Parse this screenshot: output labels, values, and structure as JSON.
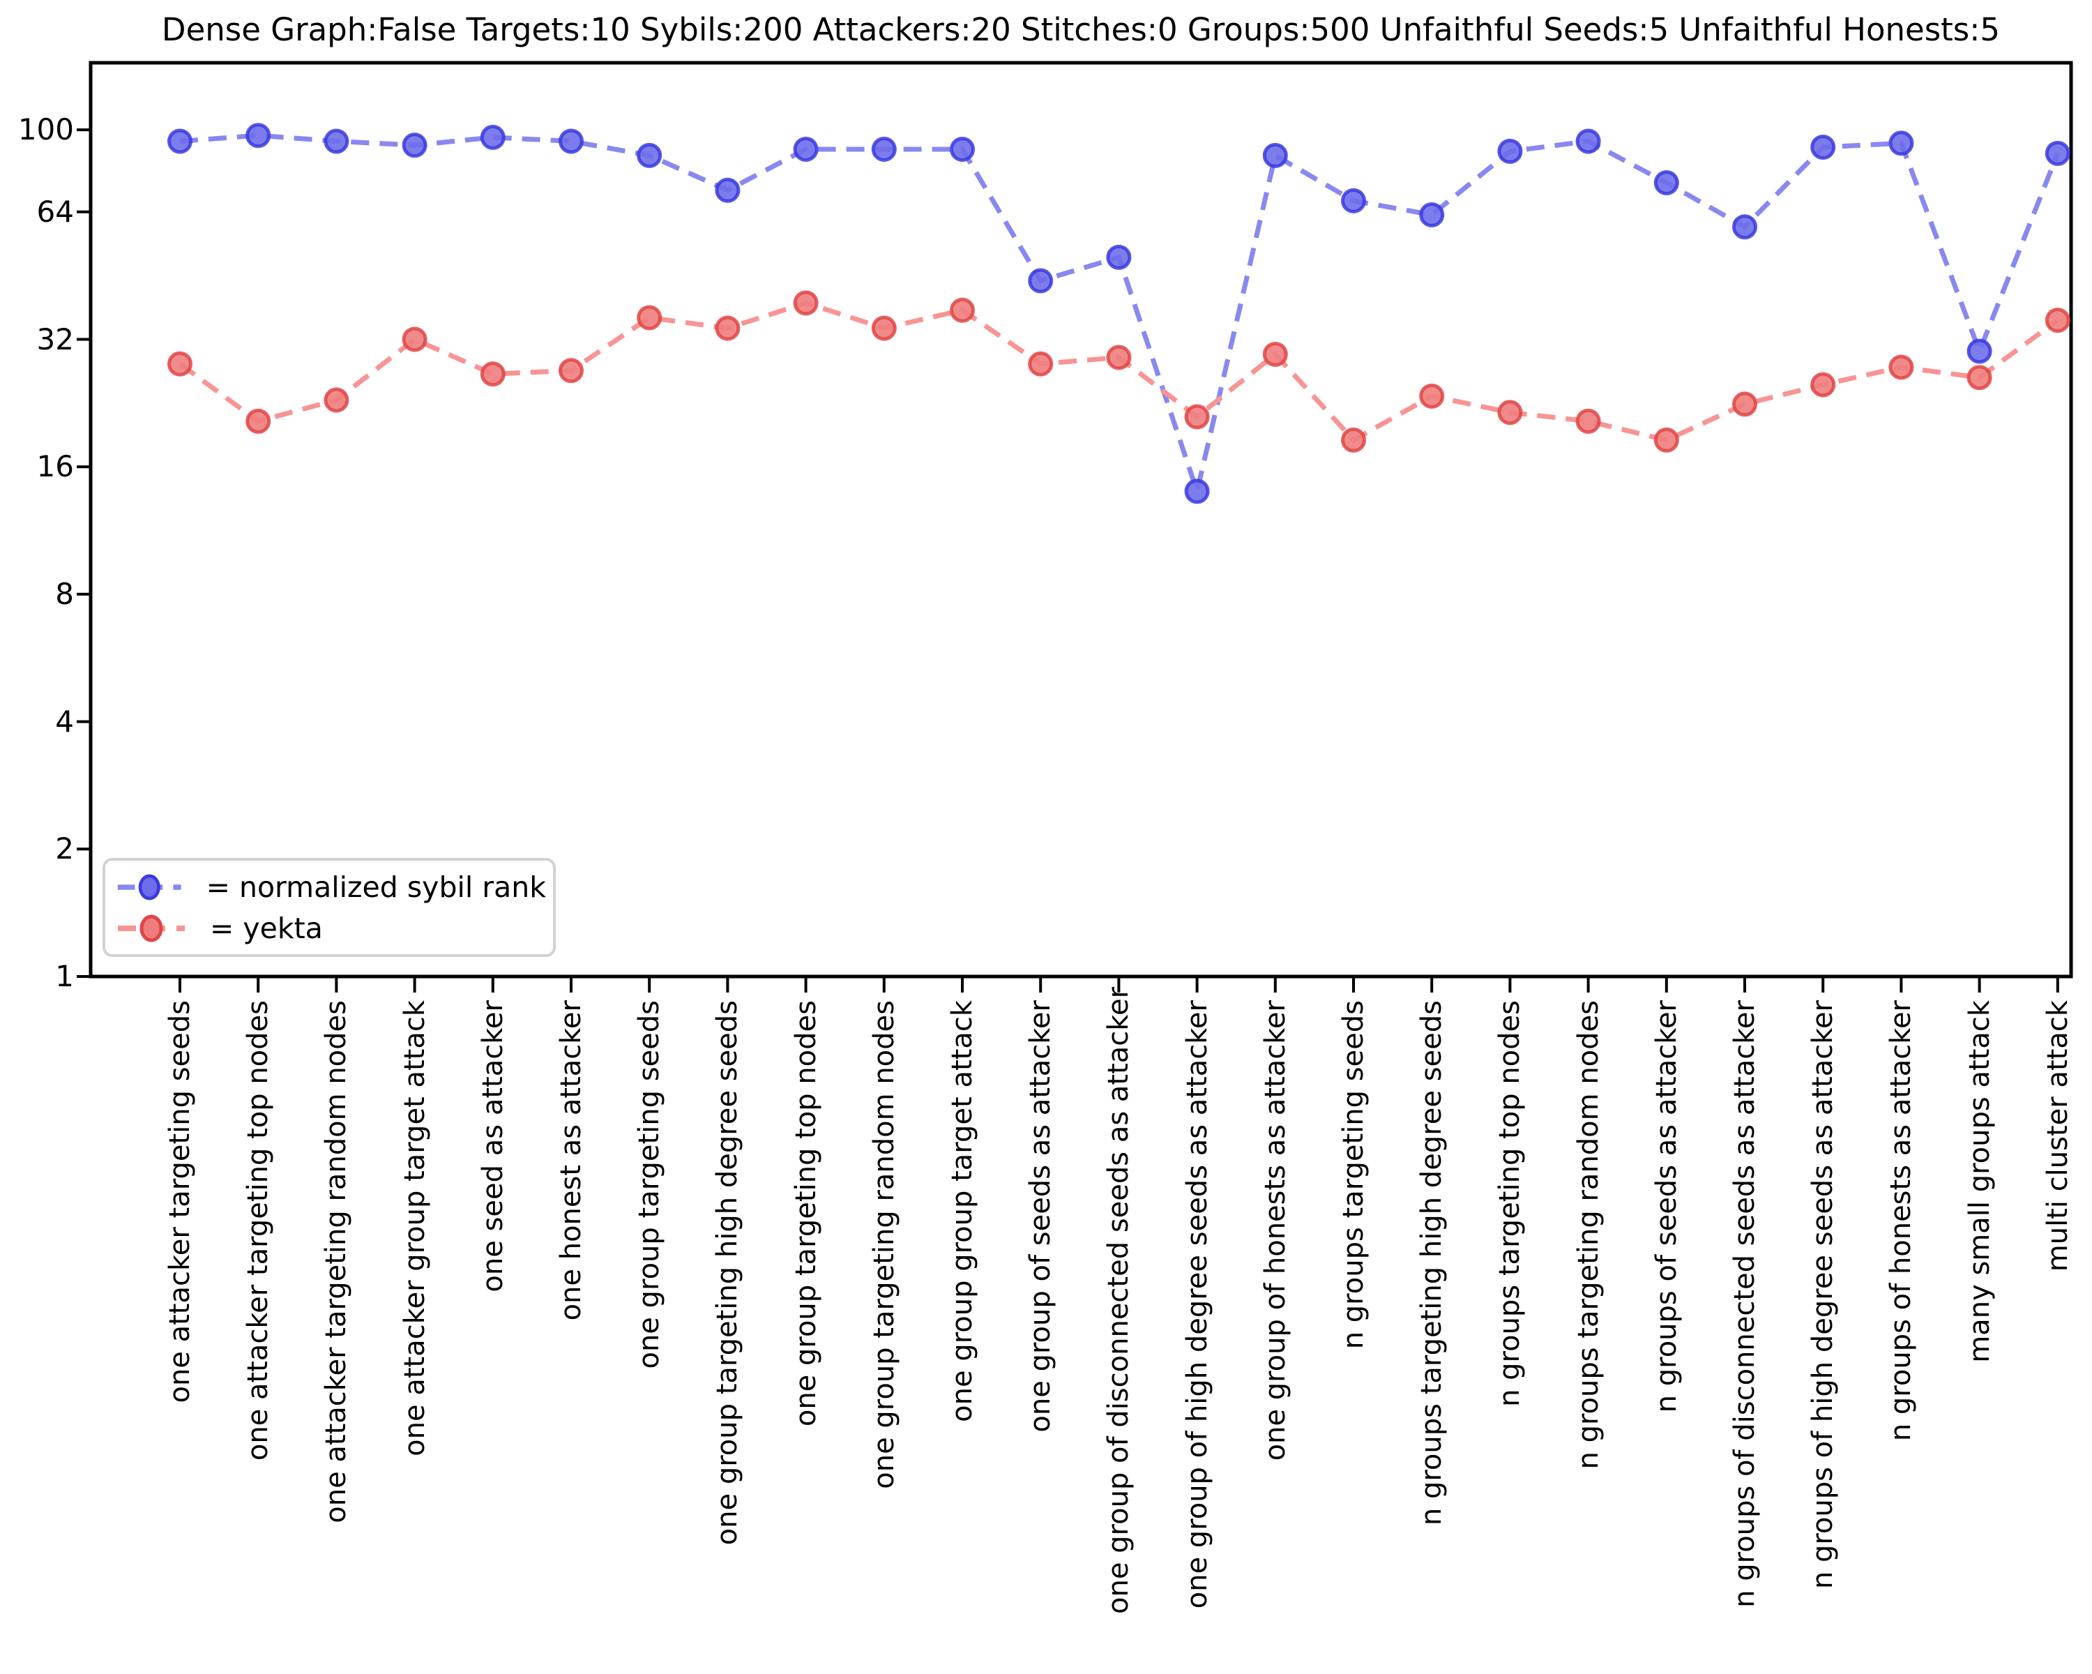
{
  "title": "Dense Graph:False Targets:10 Sybils:200 Attackers:20 Stitches:0 Groups:500 Unfaithful Seeds:5 Unfaithful Honests:5",
  "legend": {
    "items": [
      {
        "label": "= normalized sybil rank",
        "series": "normalized sybil rank"
      },
      {
        "label": "= yekta",
        "series": "yekta"
      }
    ]
  },
  "colors": {
    "sybil_rank_line": "#8888f0",
    "sybil_rank_fill": "#6e6eeb",
    "sybil_rank_edge": "#3a3ae0",
    "yekta_line": "#f89494",
    "yekta_fill": "#ef7d7d",
    "yekta_edge": "#e24444",
    "axis": "#000000",
    "legend_border": "#d2d2d2",
    "background": "#ffffff"
  },
  "chart_data": {
    "type": "line",
    "yscale": "log2",
    "grid": false,
    "legend_position": "lower left",
    "ylim": [
      1,
      141
    ],
    "yticks": [
      100,
      64,
      32,
      16,
      8,
      4,
      2,
      1
    ],
    "categories": [
      "one attacker targeting seeds",
      "one attacker targeting top nodes",
      "one attacker targeting random nodes",
      "one attacker group target attack",
      "one seed as attacker",
      "one honest as attacker",
      "one group targeting seeds",
      "one group targeting high degree seeds",
      "one group targeting top nodes",
      "one group targeting random nodes",
      "one group group target attack",
      "one group of seeds as attacker",
      "one group of disconnected seeds as attacker",
      "one group of high degree seeds as attacker",
      "one group of honests as attacker",
      "n groups targeting seeds",
      "n groups targeting high degree seeds",
      "n groups targeting top nodes",
      "n groups targeting random nodes",
      "n groups of seeds as attacker",
      "n groups of disconnected seeds as attacker",
      "n groups of high degree seeds as attacker",
      "n groups of honests as attacker",
      "many small groups attack",
      "multi cluster attack"
    ],
    "series": [
      {
        "name": "normalized sybil rank",
        "color_key": "sybil_rank",
        "values": [
          94,
          97,
          94,
          92,
          96,
          94,
          87,
          72,
          90,
          90,
          90,
          44,
          50,
          14,
          87,
          68,
          63,
          89,
          94,
          75,
          59,
          91,
          93,
          30,
          88
        ]
      },
      {
        "name": "yekta",
        "color_key": "yekta",
        "values": [
          28,
          20.5,
          23,
          32,
          26.5,
          27,
          36,
          34,
          39,
          34,
          37.5,
          28,
          29,
          21,
          29.5,
          18.5,
          23.5,
          21.5,
          20.5,
          18.5,
          22.5,
          25,
          27.5,
          26,
          35.5
        ]
      }
    ]
  }
}
